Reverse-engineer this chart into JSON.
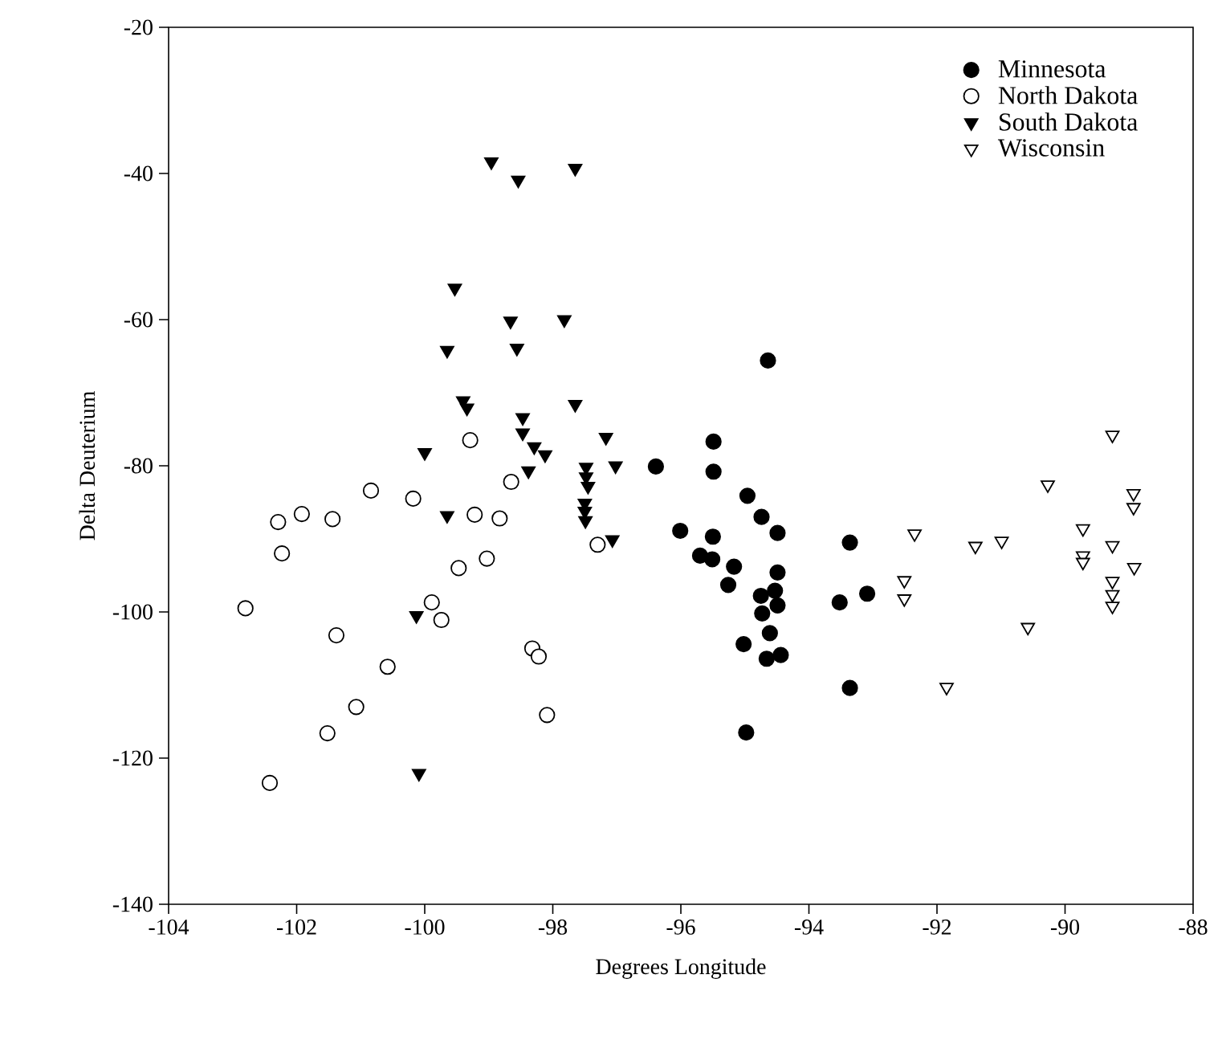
{
  "chart_data": {
    "type": "scatter",
    "xlabel": "Degrees Longitude",
    "ylabel": "Delta Deuterium",
    "xlim": [
      -104,
      -88
    ],
    "xticks": [
      -104,
      -102,
      -100,
      -98,
      -96,
      -94,
      -92,
      -90,
      -88
    ],
    "ylim": [
      -140,
      -20
    ],
    "yticks": [
      -140,
      -120,
      -100,
      -80,
      -60,
      -40,
      -20
    ],
    "grid": false,
    "legend": "top right",
    "series": [
      {
        "name": "Minnesota",
        "color": "#000000",
        "marker": "circle",
        "x": [
          -96.39,
          -95.49,
          -95.49,
          -94.96,
          -94.74,
          -94.49,
          -96.01,
          -95.5,
          -95.7,
          -95.51,
          -95.17,
          -95.26,
          -94.49,
          -94.75,
          -94.53,
          -94.49,
          -94.73,
          -94.61,
          -95.02,
          -94.66,
          -94.44,
          -94.98,
          -93.36,
          -93.52,
          -93.09,
          -93.36,
          -94.64
        ],
        "values": [
          -80.1,
          -76.7,
          -80.8,
          -84.1,
          -87.0,
          -89.2,
          -88.9,
          -89.7,
          -92.3,
          -92.8,
          -93.8,
          -96.3,
          -94.6,
          -97.8,
          -97.1,
          -99.1,
          -100.2,
          -102.9,
          -104.4,
          -106.4,
          -105.9,
          -116.5,
          -90.5,
          -98.7,
          -97.5,
          -110.4,
          -65.6
        ]
      },
      {
        "name": "North Dakota",
        "color": "#ffffff",
        "marker": "circle",
        "x": [
          -102.8,
          -102.29,
          -101.92,
          -101.44,
          -102.23,
          -100.84,
          -100.18,
          -99.29,
          -99.22,
          -98.83,
          -98.65,
          -99.47,
          -99.03,
          -99.89,
          -99.74,
          -101.38,
          -100.58,
          -101.07,
          -101.52,
          -102.42,
          -98.32,
          -98.22,
          -98.09,
          -97.3
        ],
        "values": [
          -99.5,
          -87.7,
          -86.6,
          -87.3,
          -92.0,
          -83.4,
          -84.5,
          -76.5,
          -86.7,
          -87.2,
          -82.2,
          -94.0,
          -92.7,
          -98.7,
          -101.1,
          -103.2,
          -107.5,
          -113.0,
          -116.6,
          -123.4,
          -105.0,
          -106.1,
          -114.1,
          -90.8
        ]
      },
      {
        "name": "South Dakota",
        "color": "#000000",
        "marker": "triangle",
        "x": [
          -98.96,
          -98.54,
          -97.65,
          -99.53,
          -98.66,
          -97.82,
          -99.65,
          -98.56,
          -99.4,
          -99.34,
          -97.65,
          -98.47,
          -98.47,
          -98.29,
          -98.12,
          -97.17,
          -100.0,
          -98.38,
          -97.48,
          -97.48,
          -97.45,
          -97.02,
          -97.5,
          -97.5,
          -97.49,
          -99.65,
          -97.07,
          -100.13,
          -100.09
        ],
        "values": [
          -38.4,
          -40.9,
          -39.3,
          -55.7,
          -60.2,
          -60.0,
          -64.2,
          -63.9,
          -71.1,
          -72.1,
          -71.6,
          -73.4,
          -75.5,
          -77.4,
          -78.5,
          -76.1,
          -78.2,
          -80.7,
          -80.2,
          -81.5,
          -82.8,
          -80.0,
          -85.1,
          -86.2,
          -87.5,
          -86.8,
          -90.1,
          -100.5,
          -122.1
        ]
      },
      {
        "name": "Wisconsin",
        "color": "#ffffff",
        "marker": "triangle",
        "x": [
          -92.35,
          -92.51,
          -92.51,
          -91.85,
          -91.4,
          -90.99,
          -90.27,
          -90.58,
          -89.72,
          -89.72,
          -89.72,
          -89.26,
          -89.26,
          -89.26,
          -89.26,
          -89.26,
          -88.93,
          -88.93,
          -88.92
        ],
        "values": [
          -89.3,
          -95.7,
          -98.2,
          -110.3,
          -91.0,
          -90.3,
          -82.6,
          -102.1,
          -88.6,
          -92.3,
          -93.2,
          -75.8,
          -90.9,
          -95.8,
          -97.6,
          -99.2,
          -83.8,
          -85.7,
          -93.9
        ]
      }
    ]
  }
}
